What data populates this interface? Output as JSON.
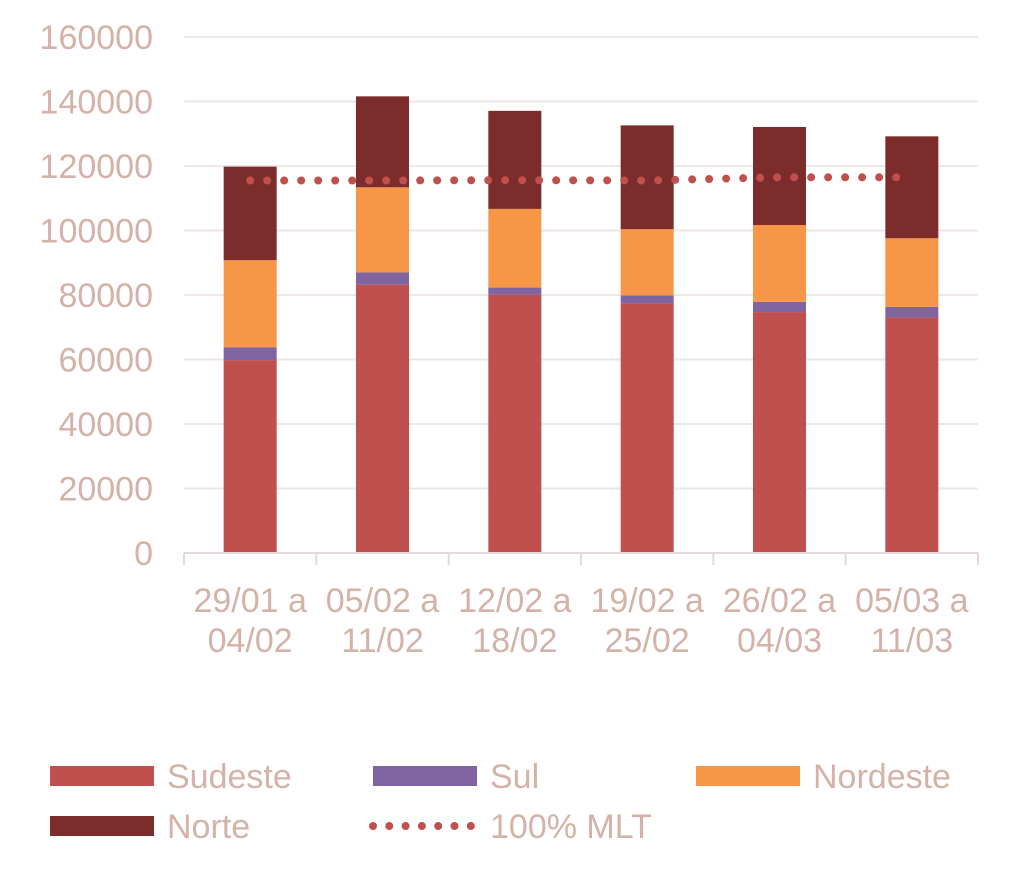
{
  "chart_data": {
    "type": "bar",
    "stacked": true,
    "title": "",
    "xlabel": "",
    "ylabel": "",
    "ylim": [
      0,
      160000
    ],
    "yticks": [
      "0",
      "20000",
      "40000",
      "60000",
      "80000",
      "100000",
      "120000",
      "140000",
      "160000"
    ],
    "grid": true,
    "legend_position": "bottom",
    "categories": [
      [
        "29/01 a",
        "04/02"
      ],
      [
        "05/02 a",
        "11/02"
      ],
      [
        "12/02 a",
        "18/02"
      ],
      [
        "19/02 a",
        "25/02"
      ],
      [
        "26/02 a",
        "04/03"
      ],
      [
        "05/03 a",
        "11/03"
      ]
    ],
    "series": [
      {
        "name": "Sudeste",
        "color": "#c0504d",
        "values": [
          59800,
          83200,
          80100,
          77400,
          74700,
          73000
        ]
      },
      {
        "name": "Sul",
        "color": "#8064a2",
        "values": [
          4000,
          3800,
          2200,
          2500,
          3200,
          3300
        ]
      },
      {
        "name": "Nordeste",
        "color": "#f79646",
        "values": [
          27000,
          26400,
          24400,
          20500,
          23800,
          21300
        ]
      },
      {
        "name": "Norte",
        "color": "#7b2c2b",
        "values": [
          29000,
          28200,
          30400,
          32200,
          30400,
          31600
        ]
      }
    ],
    "line_series": {
      "name": "100% MLT",
      "color": "#c0504d",
      "style": "dotted",
      "values": [
        115500,
        115500,
        115600,
        115500,
        116500,
        116500
      ]
    }
  },
  "style": {
    "axis_text_color": "#d4b2a7",
    "grid_color": "#efe6e6",
    "axis_color": "#e6d8d8"
  }
}
